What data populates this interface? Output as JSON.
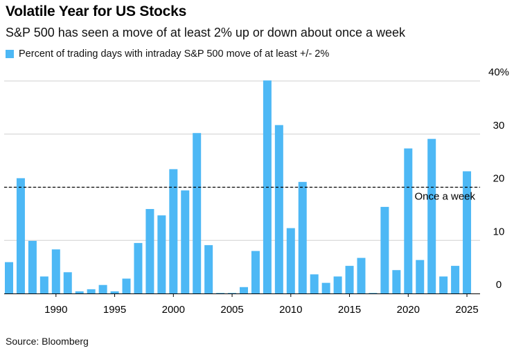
{
  "header": {
    "title": "Volatile Year for US Stocks",
    "subtitle": "S&P 500 has seen a move of at least 2% up or down about once a week"
  },
  "legend": {
    "label": "Percent of trading days with intraday S&P 500 move of at least +/- 2%"
  },
  "footer": {
    "source": "Source: Bloomberg"
  },
  "colors": {
    "bar": "#4db8f5",
    "grid": "#cfcfcf",
    "axis": "#000000",
    "reference_line": "#000000"
  },
  "chart_data": {
    "type": "bar",
    "title": "Volatile Year for US Stocks",
    "subtitle": "S&P 500 has seen a move of at least 2% up or down about once a week",
    "xlabel": "",
    "ylabel": "",
    "x_axis": "year",
    "xlim": [
      1986,
      2025
    ],
    "x_ticks": [
      1990,
      1995,
      2000,
      2005,
      2010,
      2015,
      2020,
      2025
    ],
    "ylim": [
      0,
      40
    ],
    "y_ticks": [
      0,
      10,
      20,
      30,
      40
    ],
    "y_tick_labels": [
      "0",
      "10",
      "20",
      "30",
      "40%"
    ],
    "y_axis_side": "right",
    "grid": true,
    "legend_position": "top-left",
    "series": [
      {
        "name": "Percent of trading days with intraday S&P 500 move of at least +/- 2%",
        "x": [
          1986,
          1987,
          1988,
          1989,
          1990,
          1991,
          1992,
          1993,
          1994,
          1995,
          1996,
          1997,
          1998,
          1999,
          2000,
          2001,
          2002,
          2003,
          2004,
          2005,
          2006,
          2007,
          2008,
          2009,
          2010,
          2011,
          2012,
          2013,
          2014,
          2015,
          2016,
          2017,
          2018,
          2019,
          2020,
          2021,
          2022,
          2023,
          2024,
          2025
        ],
        "values": [
          5.9,
          21.7,
          9.9,
          3.2,
          8.3,
          4.0,
          0.4,
          0.8,
          1.6,
          0.4,
          2.8,
          9.5,
          15.9,
          14.7,
          23.4,
          19.4,
          30.2,
          9.1,
          0.1,
          0.1,
          1.2,
          8.0,
          40.1,
          31.7,
          12.3,
          21.0,
          3.6,
          2.0,
          3.2,
          5.2,
          6.7,
          0.1,
          16.3,
          4.4,
          27.3,
          6.3,
          29.1,
          3.2,
          5.2,
          23.0
        ]
      }
    ],
    "annotations": [
      {
        "type": "hline",
        "y": 20,
        "style": "dashed",
        "text": "Once a week"
      }
    ]
  }
}
